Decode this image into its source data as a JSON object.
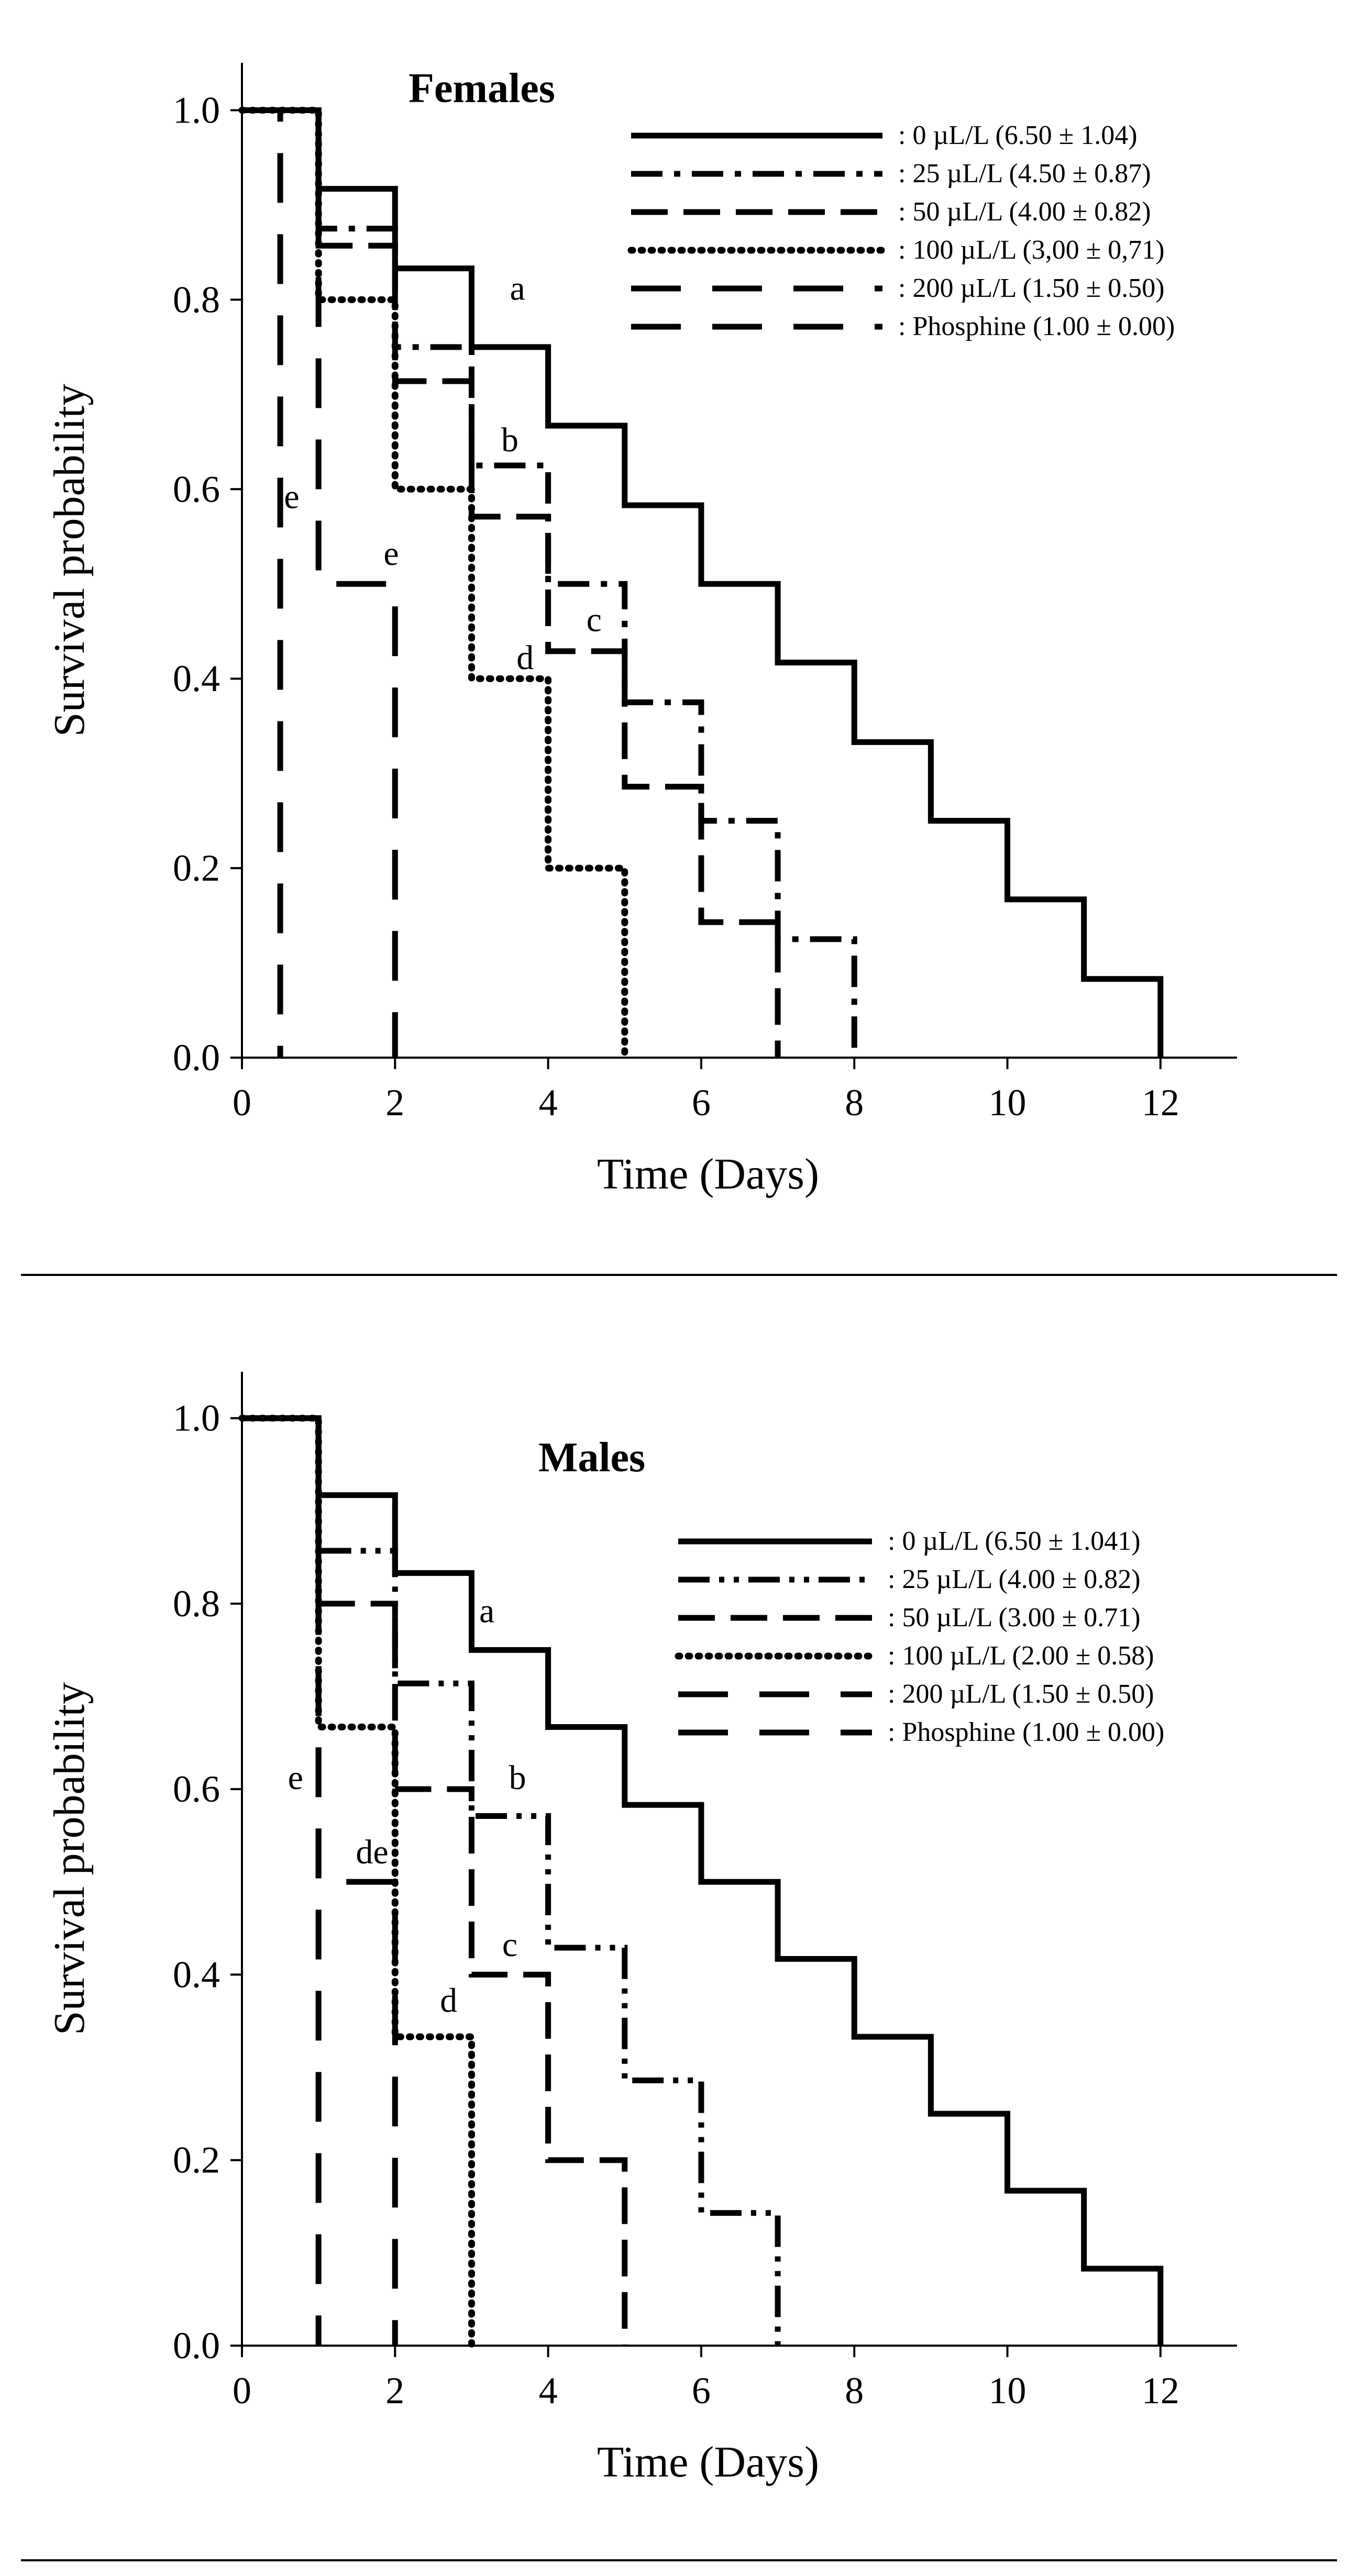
{
  "chart_data": [
    {
      "type": "line",
      "step": true,
      "title": "Females",
      "xlabel": "Time (Days)",
      "ylabel": "Survival probability",
      "xlim": [
        0,
        13
      ],
      "ylim": [
        0,
        1.05
      ],
      "x_ticks": [
        "0",
        "2",
        "4",
        "6",
        "8",
        "10",
        "12"
      ],
      "y_ticks": [
        "0.0",
        "0.2",
        "0.4",
        "0.6",
        "0.8",
        "1.0"
      ],
      "legend_position": "top-right",
      "series": [
        {
          "name": ": 0 µL/L (6.50 ± 1.04)",
          "style": "solid",
          "x": [
            0,
            1,
            2,
            3,
            4,
            5,
            6,
            7,
            8,
            9,
            10,
            11,
            12
          ],
          "y": [
            1.0,
            0.917,
            0.833,
            0.75,
            0.667,
            0.583,
            0.5,
            0.417,
            0.333,
            0.25,
            0.167,
            0.083,
            0.0
          ]
        },
        {
          "name": ": 25 µL/L (4.50 ± 0.87)",
          "style": "dashdot",
          "x": [
            0,
            1,
            2,
            3,
            4,
            5,
            6,
            7,
            8
          ],
          "y": [
            1.0,
            0.875,
            0.75,
            0.625,
            0.5,
            0.375,
            0.25,
            0.125,
            0.0
          ]
        },
        {
          "name": ": 50 µL/L (4.00 ± 0.82)",
          "style": "longdash",
          "x": [
            0,
            1,
            2,
            3,
            4,
            5,
            6,
            7
          ],
          "y": [
            1.0,
            0.857,
            0.714,
            0.571,
            0.429,
            0.286,
            0.143,
            0.0
          ]
        },
        {
          "name": ": 100 µL/L (3,00 ± 0,71)",
          "style": "dotted",
          "x": [
            0,
            1,
            2,
            3,
            4,
            5
          ],
          "y": [
            1.0,
            0.8,
            0.6,
            0.4,
            0.2,
            0.0
          ]
        },
        {
          "name": ": 200 µL/L (1.50 ± 0.50)",
          "style": "dash",
          "x": [
            0,
            1,
            2
          ],
          "y": [
            1.0,
            0.5,
            0.0
          ]
        },
        {
          "name": ": Phosphine (1.00 ± 0.00)",
          "style": "dash",
          "x": [
            0,
            0.5
          ],
          "y": [
            1.0,
            0.0
          ]
        }
      ],
      "annotations": [
        {
          "text": "a",
          "x": 3.6,
          "y": 0.8
        },
        {
          "text": "b",
          "x": 3.5,
          "y": 0.64
        },
        {
          "text": "c",
          "x": 4.6,
          "y": 0.45
        },
        {
          "text": "d",
          "x": 3.7,
          "y": 0.41
        },
        {
          "text": "e",
          "x": 0.65,
          "y": 0.58
        },
        {
          "text": "e",
          "x": 1.95,
          "y": 0.52
        }
      ]
    },
    {
      "type": "line",
      "step": true,
      "title": "Males",
      "xlabel": "Time (Days)",
      "ylabel": "Survival probability",
      "xlim": [
        0,
        13
      ],
      "ylim": [
        0,
        1.05
      ],
      "x_ticks": [
        "0",
        "2",
        "4",
        "6",
        "8",
        "10",
        "12"
      ],
      "y_ticks": [
        "0.0",
        "0.2",
        "0.4",
        "0.6",
        "0.8",
        "1.0"
      ],
      "legend_position": "top-right",
      "series": [
        {
          "name": ": 0 µL/L (6.50 ± 1.041)",
          "style": "solid",
          "x": [
            0,
            1,
            2,
            3,
            4,
            5,
            6,
            7,
            8,
            9,
            10,
            11,
            12
          ],
          "y": [
            1.0,
            0.917,
            0.833,
            0.75,
            0.667,
            0.583,
            0.5,
            0.417,
            0.333,
            0.25,
            0.167,
            0.083,
            0.0
          ]
        },
        {
          "name": ": 25 µL/L (4.00 ± 0.82)",
          "style": "dashdotdot",
          "x": [
            0,
            1,
            2,
            3,
            4,
            5,
            6,
            7
          ],
          "y": [
            1.0,
            0.857,
            0.714,
            0.571,
            0.429,
            0.286,
            0.143,
            0.0
          ]
        },
        {
          "name": ": 50 µL/L (3.00 ± 0.71)",
          "style": "longdash",
          "x": [
            0,
            1,
            2,
            3,
            4,
            5
          ],
          "y": [
            1.0,
            0.8,
            0.6,
            0.4,
            0.2,
            0.0
          ]
        },
        {
          "name": ": 100 µL/L (2.00 ± 0.58)",
          "style": "dotted",
          "x": [
            0,
            1,
            2,
            3
          ],
          "y": [
            1.0,
            0.667,
            0.333,
            0.0
          ]
        },
        {
          "name": ": 200 µL/L (1.50 ± 0.50)",
          "style": "dash",
          "x": [
            0,
            1,
            2
          ],
          "y": [
            1.0,
            0.5,
            0.0
          ]
        },
        {
          "name": ": Phosphine (1.00 ± 0.00)",
          "style": "dash",
          "x": [
            0,
            1
          ],
          "y": [
            1.0,
            0.0
          ]
        }
      ],
      "annotations": [
        {
          "text": "a",
          "x": 3.2,
          "y": 0.78
        },
        {
          "text": "b",
          "x": 3.6,
          "y": 0.6
        },
        {
          "text": "c",
          "x": 3.5,
          "y": 0.42
        },
        {
          "text": "d",
          "x": 2.7,
          "y": 0.36
        },
        {
          "text": "e",
          "x": 0.7,
          "y": 0.6
        },
        {
          "text": "de",
          "x": 1.7,
          "y": 0.52
        }
      ]
    }
  ]
}
